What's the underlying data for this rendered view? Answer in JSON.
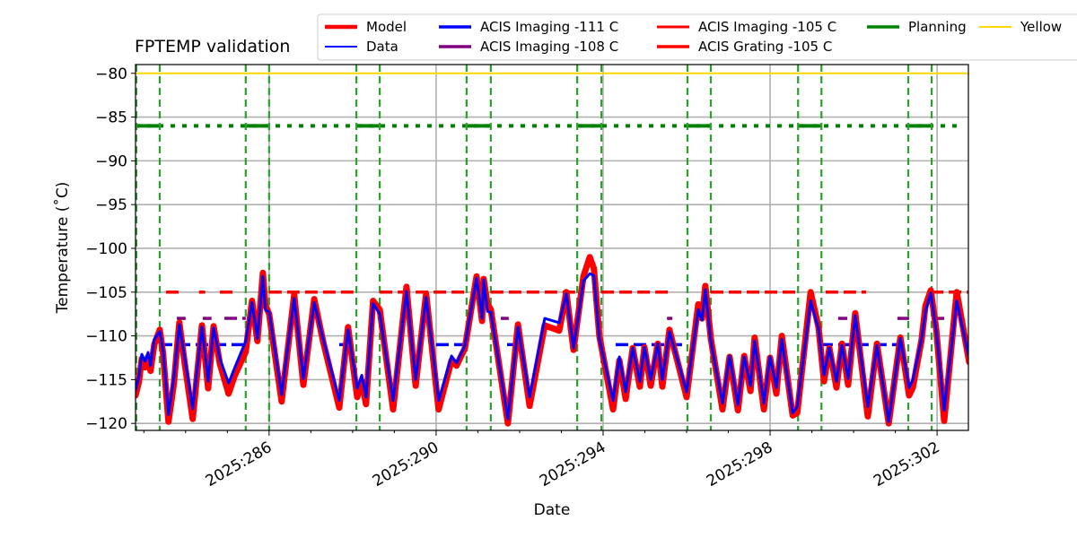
{
  "chart_data": {
    "type": "line",
    "title": "FPTEMP validation",
    "xlabel": "Date",
    "ylabel": "Temperature ($^\\circ$C)",
    "ylabel_display": "Temperature (˚C)",
    "xlim": [
      282.8,
      302.75
    ],
    "ylim": [
      -120.8,
      -79.0
    ],
    "grid": true,
    "x_ticks": [
      286,
      290,
      294,
      298,
      302
    ],
    "x_tick_labels": [
      "2025:286",
      "2025:290",
      "2025:294",
      "2025:298",
      "2025:302"
    ],
    "y_ticks": [
      -80,
      -85,
      -90,
      -95,
      -100,
      -105,
      -110,
      -115,
      -120
    ],
    "y_tick_labels": [
      "−80",
      "−85",
      "−90",
      "−95",
      "−100",
      "−105",
      "−110",
      "−115",
      "−120"
    ],
    "legend_placement": "top-right, outside plot",
    "legend": [
      {
        "label": "Model",
        "color": "#ff0000"
      },
      {
        "label": "Data",
        "color": "#0000ff"
      },
      {
        "label": "ACIS Imaging -111 C",
        "color": "#0000ff"
      },
      {
        "label": "ACIS Imaging -108 C",
        "color": "#800080"
      },
      {
        "label": "ACIS Imaging -105 C",
        "color": "#ff0000"
      },
      {
        "label": "ACIS Grating -105 C",
        "color": "#ff0000"
      },
      {
        "label": "Planning",
        "color": "#008000"
      },
      {
        "label": "Yellow",
        "color": "#ffd700"
      }
    ],
    "x": [
      282.8,
      282.88,
      282.95,
      283.03,
      283.1,
      283.16,
      283.25,
      283.38,
      283.46,
      283.59,
      283.72,
      283.85,
      283.98,
      284.17,
      284.39,
      284.54,
      284.67,
      284.82,
      285.03,
      285.18,
      285.44,
      285.59,
      285.72,
      285.85,
      285.91,
      286.0,
      286.3,
      286.6,
      286.82,
      287.08,
      287.29,
      287.68,
      287.89,
      288.11,
      288.22,
      288.32,
      288.49,
      288.65,
      288.97,
      289.29,
      289.51,
      289.76,
      290.06,
      290.37,
      290.49,
      290.69,
      290.97,
      291.1,
      291.14,
      291.23,
      291.31,
      291.72,
      291.96,
      292.24,
      292.6,
      292.95,
      293.12,
      293.29,
      293.53,
      293.68,
      293.78,
      293.91,
      294.24,
      294.39,
      294.54,
      294.71,
      294.88,
      294.99,
      295.14,
      295.31,
      295.42,
      295.59,
      296.0,
      296.28,
      296.37,
      296.45,
      296.58,
      296.86,
      297.03,
      297.23,
      297.38,
      297.53,
      297.63,
      297.85,
      298.0,
      298.15,
      298.28,
      298.54,
      298.65,
      298.97,
      299.16,
      299.29,
      299.42,
      299.59,
      299.72,
      299.87,
      300.04,
      300.34,
      300.56,
      300.84,
      301.12,
      301.33,
      301.42,
      301.63,
      301.72,
      301.85,
      301.98,
      302.17,
      302.47,
      302.77
    ],
    "series": [
      {
        "name": "Model",
        "color": "#ff0000",
        "values": [
          -116.8,
          -115.3,
          -112.6,
          -113.6,
          -112.4,
          -114.0,
          -111.0,
          -109.3,
          -112.0,
          -119.8,
          -115.4,
          -108.5,
          -113.2,
          -119.5,
          -108.8,
          -116.0,
          -108.9,
          -113.2,
          -116.6,
          -114.5,
          -111.8,
          -106.0,
          -110.6,
          -102.8,
          -106.5,
          -107.5,
          -117.5,
          -105.3,
          -115.6,
          -105.8,
          -110.6,
          -118.2,
          -109.0,
          -117.0,
          -115.2,
          -117.8,
          -106.0,
          -107.0,
          -118.4,
          -104.4,
          -115.7,
          -105.2,
          -118.4,
          -112.8,
          -113.4,
          -111.4,
          -103.2,
          -108.3,
          -103.5,
          -106.4,
          -107.0,
          -120.0,
          -108.7,
          -118.0,
          -108.8,
          -109.4,
          -105.0,
          -111.6,
          -103.2,
          -101.0,
          -102.3,
          -110.0,
          -118.4,
          -112.8,
          -117.2,
          -111.4,
          -115.8,
          -111.3,
          -115.7,
          -110.9,
          -115.8,
          -109.3,
          -117.0,
          -106.4,
          -108.0,
          -104.3,
          -110.3,
          -118.4,
          -112.4,
          -118.5,
          -112.3,
          -116.3,
          -110.2,
          -118.4,
          -112.5,
          -116.6,
          -110.0,
          -119.1,
          -118.8,
          -105.0,
          -109.0,
          -115.2,
          -111.4,
          -115.9,
          -110.9,
          -115.6,
          -107.4,
          -119.2,
          -110.9,
          -120.0,
          -110.2,
          -116.8,
          -115.9,
          -110.4,
          -106.6,
          -104.8,
          -109.3,
          -119.7,
          -105.0,
          -113.0
        ]
      },
      {
        "name": "Data",
        "color": "#0000ff",
        "values": [
          -116.2,
          -114.7,
          -112.1,
          -112.9,
          -111.9,
          -113.4,
          -110.4,
          -109.5,
          -111.6,
          -119.0,
          -114.7,
          -108.7,
          -112.6,
          -118.3,
          -109.0,
          -115.2,
          -109.1,
          -112.6,
          -115.4,
          -113.6,
          -110.6,
          -106.2,
          -110.3,
          -103.2,
          -107.0,
          -107.3,
          -116.7,
          -105.7,
          -114.9,
          -106.2,
          -110.3,
          -117.4,
          -109.3,
          -116.0,
          -114.5,
          -117.0,
          -106.3,
          -107.5,
          -117.4,
          -104.9,
          -115.0,
          -105.6,
          -117.4,
          -112.3,
          -113.1,
          -111.1,
          -103.4,
          -108.0,
          -103.6,
          -107.2,
          -107.3,
          -119.5,
          -109.0,
          -117.0,
          -108.0,
          -108.5,
          -105.2,
          -111.4,
          -103.7,
          -102.9,
          -103.1,
          -110.3,
          -117.4,
          -112.4,
          -116.4,
          -111.4,
          -115.2,
          -111.3,
          -115.0,
          -110.9,
          -115.0,
          -109.5,
          -116.4,
          -107.0,
          -108.2,
          -104.7,
          -110.6,
          -117.7,
          -112.3,
          -117.9,
          -112.4,
          -115.7,
          -110.6,
          -117.7,
          -112.4,
          -115.9,
          -110.4,
          -118.8,
          -118.1,
          -106.0,
          -109.2,
          -114.5,
          -111.4,
          -115.2,
          -111.1,
          -114.9,
          -107.7,
          -118.1,
          -111.1,
          -119.8,
          -110.3,
          -115.9,
          -115.0,
          -110.3,
          -107.2,
          -105.1,
          -109.5,
          -118.5,
          -106.0,
          -112.6
        ]
      }
    ],
    "limits": [
      {
        "name": "ACIS Imaging -111 C",
        "value": -111,
        "color": "#0000ff",
        "segments": [
          [
            283.38,
            285.44
          ],
          [
            287.68,
            288.0
          ],
          [
            290.0,
            290.73
          ],
          [
            291.7,
            291.91
          ],
          [
            294.3,
            296.02
          ],
          [
            299.2,
            301.05
          ]
        ]
      },
      {
        "name": "ACIS Imaging -108 C",
        "value": -108,
        "color": "#800080",
        "segments": [
          [
            283.79,
            284.0
          ],
          [
            284.41,
            284.62
          ],
          [
            284.93,
            285.44
          ],
          [
            291.55,
            291.74
          ],
          [
            295.53,
            295.66
          ],
          [
            299.63,
            299.85
          ],
          [
            301.05,
            301.33
          ],
          [
            301.91,
            302.17
          ]
        ]
      },
      {
        "name": "ACIS Imaging -105 C",
        "value": -105,
        "color": "#ff0000",
        "segments": [
          [
            283.53,
            283.85
          ],
          [
            284.32,
            284.47
          ],
          [
            284.82,
            285.14
          ],
          [
            286.0,
            288.09
          ],
          [
            288.65,
            290.73
          ],
          [
            291.31,
            293.38
          ],
          [
            293.96,
            295.57
          ],
          [
            296.58,
            298.73
          ],
          [
            299.33,
            300.3
          ],
          [
            301.85,
            302.75
          ]
        ]
      }
    ],
    "planning": {
      "value": -86,
      "color": "#008000",
      "range": [
        282.8,
        302.5
      ],
      "solid_segments": [
        [
          282.82,
          283.38
        ],
        [
          285.44,
          286.0
        ],
        [
          288.09,
          288.65
        ],
        [
          290.73,
          291.31
        ],
        [
          293.38,
          293.96
        ],
        [
          296.02,
          296.58
        ],
        [
          298.67,
          299.23
        ],
        [
          301.31,
          301.87
        ]
      ]
    },
    "yellow": {
      "value": -80,
      "color": "#ffd700"
    },
    "vertical_markers": [
      282.82,
      283.38,
      285.44,
      286.0,
      288.09,
      288.65,
      290.73,
      291.31,
      293.38,
      293.96,
      296.02,
      296.58,
      298.67,
      299.23,
      301.31,
      301.87
    ]
  }
}
